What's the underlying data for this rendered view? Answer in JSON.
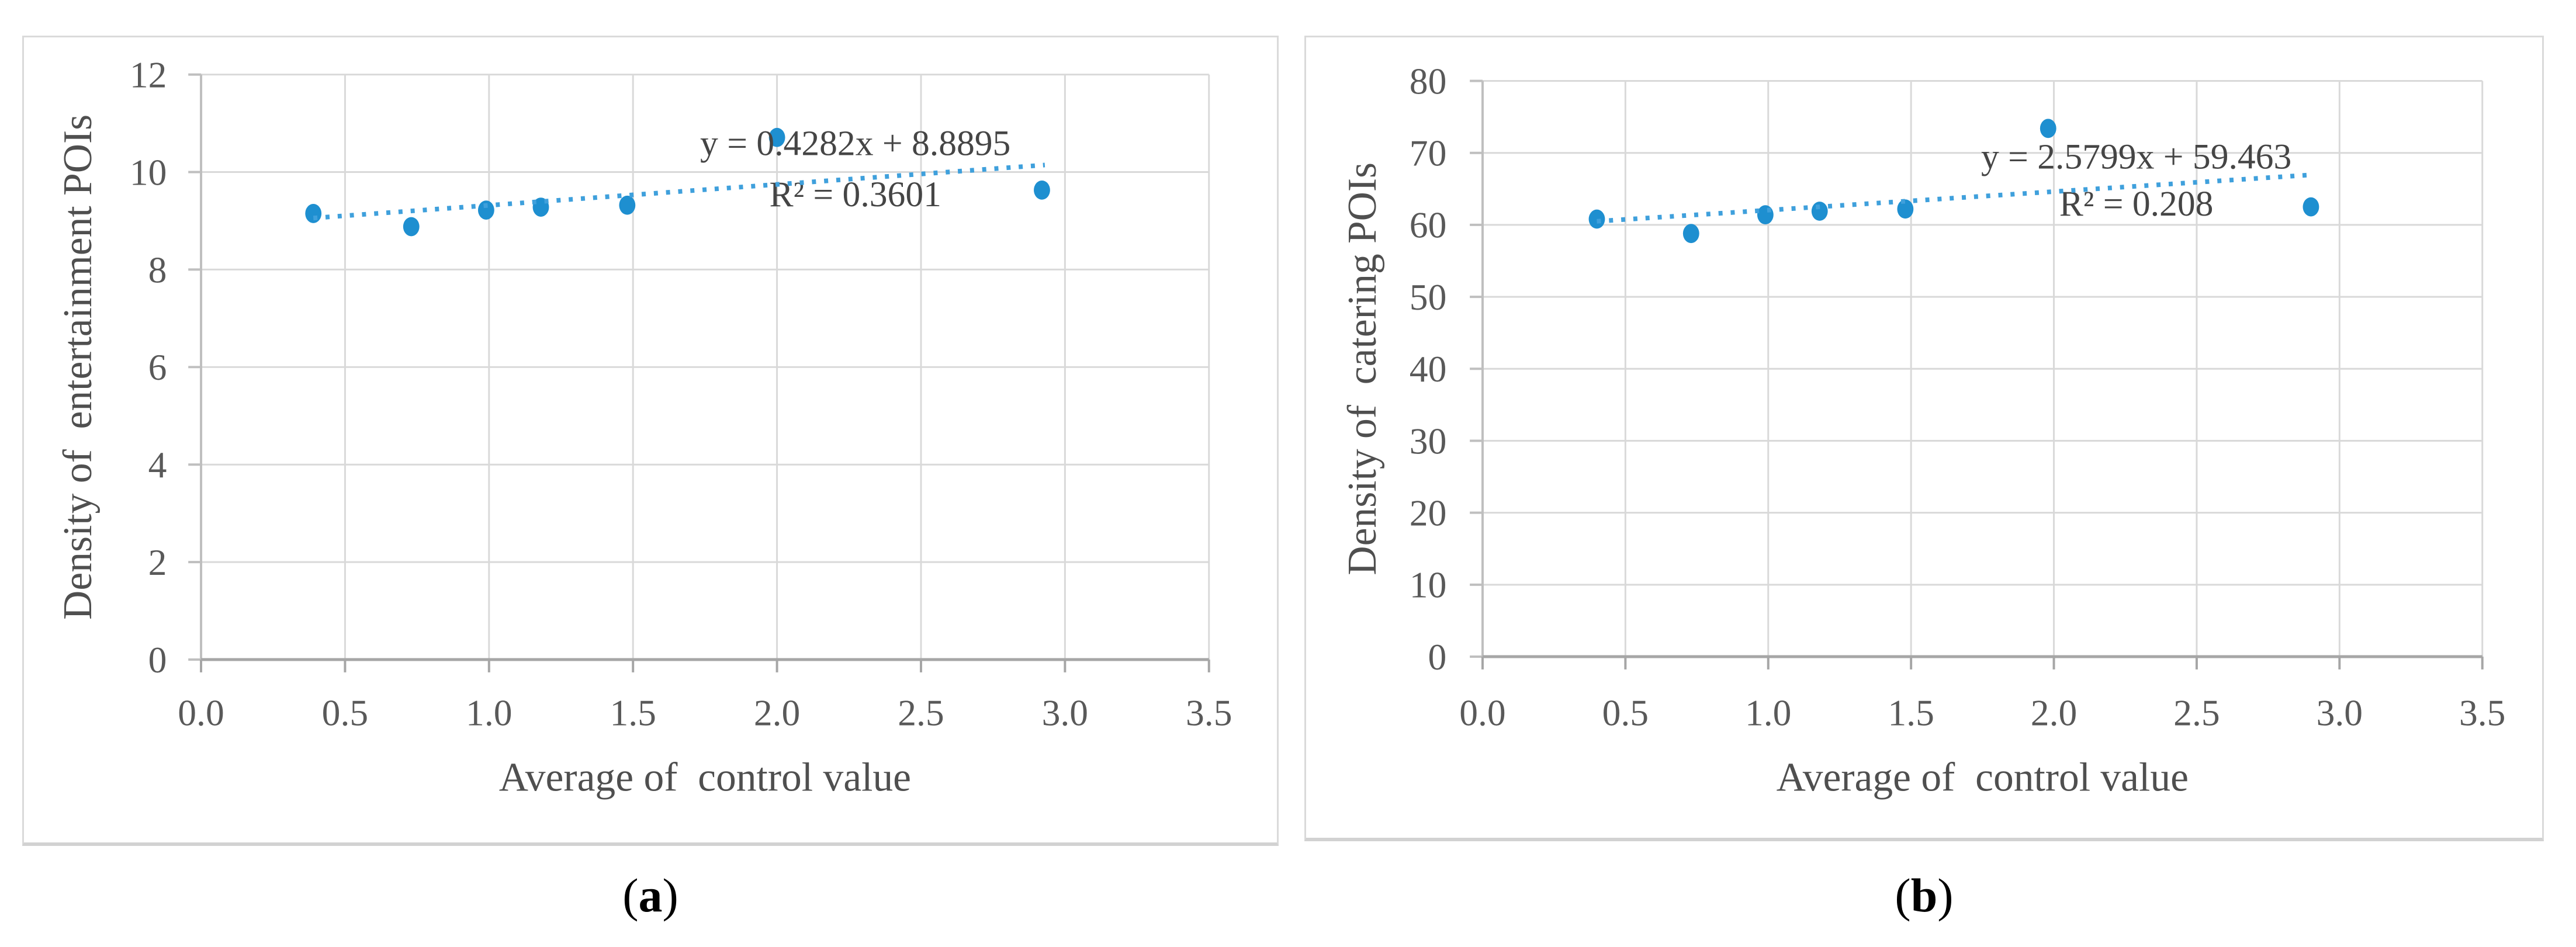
{
  "figure": {
    "description": "Two scatter plots with dotted linear trendlines",
    "background": "#ffffff"
  },
  "colors": {
    "marker": "#1e8fd0",
    "trendline": "#3fa0dc",
    "gridline": "#d9d9d9",
    "y_axis_line": "#bfbfbf",
    "x_axis_line": "#a6a6a6",
    "tick_text": "#595959",
    "axis_title_text": "#4f4f4f",
    "equation_text": "#454545",
    "panel_border": "#dadada"
  },
  "captions": {
    "a": {
      "open": "(",
      "letter": "a",
      "close": ")"
    },
    "b": {
      "open": "(",
      "letter": "b",
      "close": ")"
    }
  },
  "chart_data": [
    {
      "id": "a",
      "type": "scatter",
      "title": "",
      "xlabel": "Average of  control value",
      "ylabel": "Density of  entertainment POIs",
      "xlim": [
        0,
        3.5
      ],
      "ylim": [
        0,
        12
      ],
      "xticks": [
        "0.0",
        "0.5",
        "1.0",
        "1.5",
        "2.0",
        "2.5",
        "3.0",
        "3.5"
      ],
      "yticks": [
        "0",
        "2",
        "4",
        "6",
        "8",
        "10",
        "12"
      ],
      "grid": true,
      "legend": false,
      "points": [
        [
          0.39,
          9.15
        ],
        [
          0.73,
          8.88
        ],
        [
          0.99,
          9.22
        ],
        [
          1.18,
          9.28
        ],
        [
          1.48,
          9.32
        ],
        [
          2.0,
          10.71
        ],
        [
          2.92,
          9.63
        ]
      ],
      "trendline": {
        "slope": 0.4282,
        "intercept": 8.8895,
        "x_start": 0.39,
        "x_end": 2.93,
        "equation_label": "y = 0.4282x + 8.8895",
        "r2_label": "R² = 0.3601"
      }
    },
    {
      "id": "b",
      "type": "scatter",
      "title": "",
      "xlabel": "Average of  control value",
      "ylabel": "Density of  catering POIs",
      "xlim": [
        0,
        3.5
      ],
      "ylim": [
        0,
        80
      ],
      "xticks": [
        "0.0",
        "0.5",
        "1.0",
        "1.5",
        "2.0",
        "2.5",
        "3.0",
        "3.5"
      ],
      "yticks": [
        "0",
        "10",
        "20",
        "30",
        "40",
        "50",
        "60",
        "70",
        "80"
      ],
      "grid": true,
      "legend": false,
      "points": [
        [
          0.4,
          60.8
        ],
        [
          0.73,
          58.8
        ],
        [
          0.99,
          61.4
        ],
        [
          1.18,
          61.9
        ],
        [
          1.48,
          62.2
        ],
        [
          1.98,
          73.4
        ],
        [
          2.9,
          62.5
        ]
      ],
      "trendline": {
        "slope": 2.5799,
        "intercept": 59.463,
        "x_start": 0.4,
        "x_end": 2.9,
        "equation_label": "y = 2.5799x + 59.463",
        "r2_label": "R² = 0.208"
      }
    }
  ]
}
